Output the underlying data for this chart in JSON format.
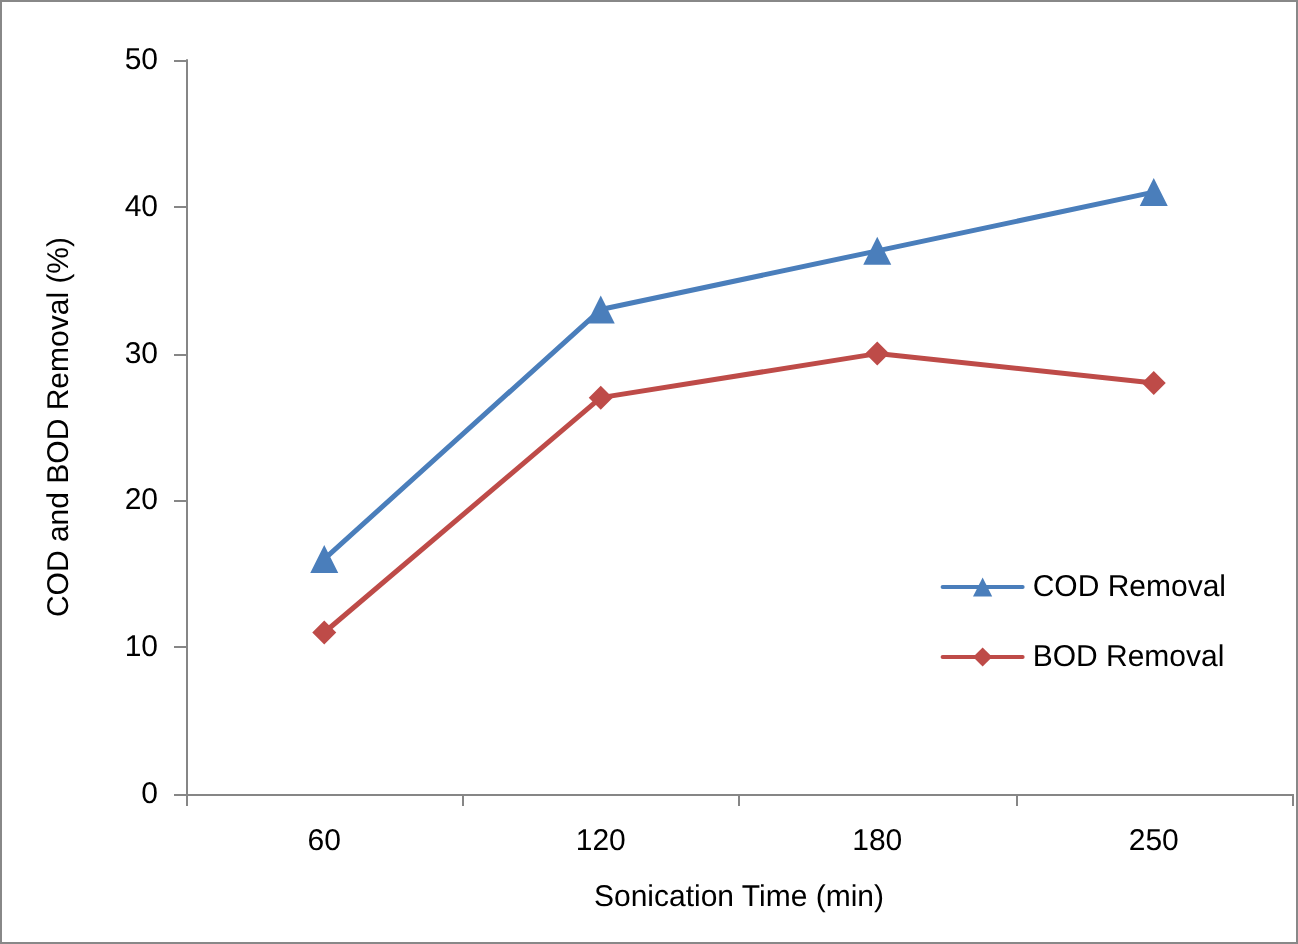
{
  "chart_data": {
    "type": "line",
    "xlabel": "Sonication Time (min)",
    "ylabel": "COD and BOD Removal (%)",
    "categories": [
      "60",
      "120",
      "180",
      "250"
    ],
    "ylim": [
      0,
      50
    ],
    "yticks": [
      0,
      10,
      20,
      30,
      40,
      50
    ],
    "grid": false,
    "legend": "right",
    "series": [
      {
        "name": "COD Removal",
        "color": "#4a7ebb",
        "marker": "triangle",
        "values": [
          16,
          33,
          37,
          41
        ]
      },
      {
        "name": "BOD Removal",
        "color": "#be4b48",
        "marker": "diamond",
        "values": [
          11,
          27,
          30,
          28
        ]
      }
    ]
  }
}
